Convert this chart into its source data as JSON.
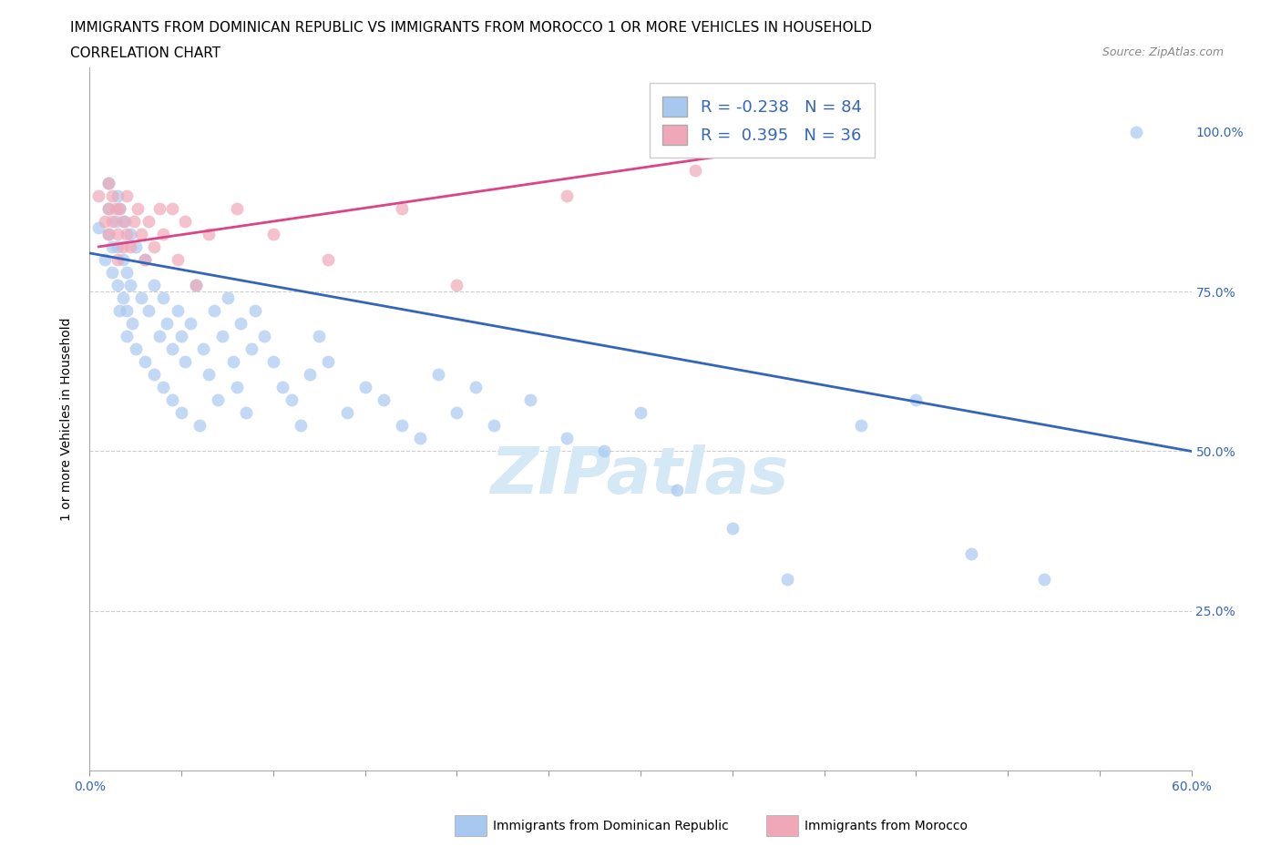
{
  "title_line1": "IMMIGRANTS FROM DOMINICAN REPUBLIC VS IMMIGRANTS FROM MOROCCO 1 OR MORE VEHICLES IN HOUSEHOLD",
  "title_line2": "CORRELATION CHART",
  "source_text": "Source: ZipAtlas.com",
  "ylabel": "1 or more Vehicles in Household",
  "watermark": "ZIPatlas",
  "xlim": [
    0.0,
    0.6
  ],
  "ylim": [
    0.0,
    1.1
  ],
  "blue_R": -0.238,
  "blue_N": 84,
  "pink_R": 0.395,
  "pink_N": 36,
  "blue_color": "#a8c8f0",
  "pink_color": "#f0a8b8",
  "blue_line_color": "#3366bb",
  "pink_line_color": "#dd4488",
  "legend_label_blue": "Immigrants from Dominican Republic",
  "legend_label_pink": "Immigrants from Morocco",
  "blue_scatter_x": [
    0.005,
    0.008,
    0.01,
    0.01,
    0.01,
    0.012,
    0.012,
    0.014,
    0.015,
    0.015,
    0.015,
    0.016,
    0.016,
    0.018,
    0.018,
    0.019,
    0.02,
    0.02,
    0.02,
    0.022,
    0.022,
    0.023,
    0.025,
    0.025,
    0.028,
    0.03,
    0.03,
    0.032,
    0.035,
    0.035,
    0.038,
    0.04,
    0.04,
    0.042,
    0.045,
    0.045,
    0.048,
    0.05,
    0.05,
    0.052,
    0.055,
    0.058,
    0.06,
    0.062,
    0.065,
    0.068,
    0.07,
    0.072,
    0.075,
    0.078,
    0.08,
    0.082,
    0.085,
    0.088,
    0.09,
    0.095,
    0.1,
    0.105,
    0.11,
    0.115,
    0.12,
    0.125,
    0.13,
    0.14,
    0.15,
    0.16,
    0.17,
    0.18,
    0.19,
    0.2,
    0.21,
    0.22,
    0.24,
    0.26,
    0.28,
    0.3,
    0.32,
    0.35,
    0.38,
    0.42,
    0.45,
    0.48,
    0.52,
    0.57
  ],
  "blue_scatter_y": [
    0.85,
    0.8,
    0.92,
    0.88,
    0.84,
    0.82,
    0.78,
    0.86,
    0.9,
    0.82,
    0.76,
    0.88,
    0.72,
    0.8,
    0.74,
    0.86,
    0.78,
    0.72,
    0.68,
    0.84,
    0.76,
    0.7,
    0.82,
    0.66,
    0.74,
    0.8,
    0.64,
    0.72,
    0.76,
    0.62,
    0.68,
    0.74,
    0.6,
    0.7,
    0.66,
    0.58,
    0.72,
    0.68,
    0.56,
    0.64,
    0.7,
    0.76,
    0.54,
    0.66,
    0.62,
    0.72,
    0.58,
    0.68,
    0.74,
    0.64,
    0.6,
    0.7,
    0.56,
    0.66,
    0.72,
    0.68,
    0.64,
    0.6,
    0.58,
    0.54,
    0.62,
    0.68,
    0.64,
    0.56,
    0.6,
    0.58,
    0.54,
    0.52,
    0.62,
    0.56,
    0.6,
    0.54,
    0.58,
    0.52,
    0.5,
    0.56,
    0.44,
    0.38,
    0.3,
    0.54,
    0.58,
    0.34,
    0.3,
    1.0
  ],
  "pink_scatter_x": [
    0.005,
    0.008,
    0.01,
    0.01,
    0.01,
    0.012,
    0.012,
    0.014,
    0.015,
    0.015,
    0.016,
    0.018,
    0.018,
    0.02,
    0.02,
    0.022,
    0.024,
    0.026,
    0.028,
    0.03,
    0.032,
    0.035,
    0.038,
    0.04,
    0.045,
    0.048,
    0.052,
    0.058,
    0.065,
    0.08,
    0.1,
    0.13,
    0.17,
    0.2,
    0.26,
    0.33
  ],
  "pink_scatter_y": [
    0.9,
    0.86,
    0.92,
    0.88,
    0.84,
    0.9,
    0.86,
    0.88,
    0.84,
    0.8,
    0.88,
    0.86,
    0.82,
    0.9,
    0.84,
    0.82,
    0.86,
    0.88,
    0.84,
    0.8,
    0.86,
    0.82,
    0.88,
    0.84,
    0.88,
    0.8,
    0.86,
    0.76,
    0.84,
    0.88,
    0.84,
    0.8,
    0.88,
    0.76,
    0.9,
    0.94
  ],
  "blue_trendline_x": [
    0.0,
    0.6
  ],
  "blue_trendline_y": [
    0.81,
    0.5
  ],
  "pink_trendline_x": [
    0.005,
    0.34
  ],
  "pink_trendline_y": [
    0.82,
    0.96
  ],
  "title_fontsize": 11,
  "subtitle_fontsize": 11,
  "axis_label_fontsize": 10,
  "tick_fontsize": 10,
  "legend_fontsize": 13,
  "watermark_fontsize": 52,
  "watermark_color": "#d4e8f5",
  "background_color": "#ffffff",
  "grid_color": "#cccccc",
  "right_ytick_color": "#3366bb"
}
